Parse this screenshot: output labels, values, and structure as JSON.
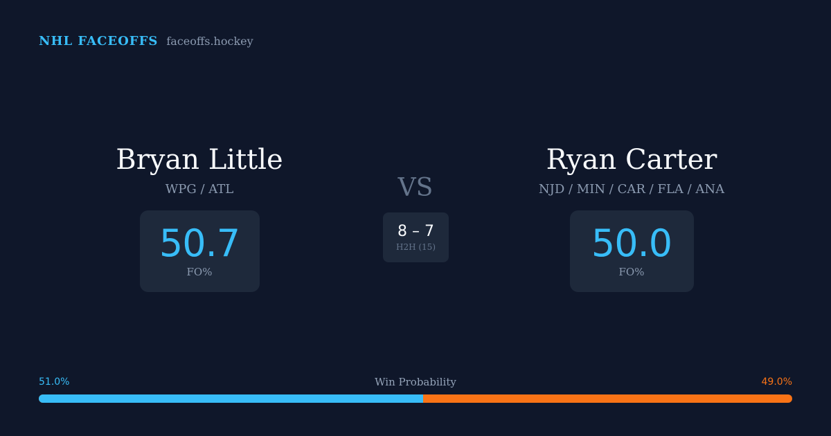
{
  "brand": {
    "title": "NHL FACEOFFS",
    "domain": "faceoffs.hockey"
  },
  "matchup": {
    "vs_label": "VS",
    "h2h_score": "8 – 7",
    "h2h_label": "H2H (15)"
  },
  "player_left": {
    "name": "Bryan Little",
    "teams": "WPG / ATL",
    "fo_value": "50.7",
    "fo_label": "FO%"
  },
  "player_right": {
    "name": "Ryan Carter",
    "teams": "NJD / MIN / CAR / FLA / ANA",
    "fo_value": "50.0",
    "fo_label": "FO%"
  },
  "win_probability": {
    "title": "Win Probability",
    "left_text": "51.0%",
    "right_text": "49.0%",
    "left_fraction": 0.51,
    "left_color": "#38bdf8",
    "right_color": "#f97316"
  },
  "colors": {
    "background": "#0f172a",
    "card": "#1e293b",
    "accent": "#38bdf8",
    "muted": "#8b9ab0"
  }
}
